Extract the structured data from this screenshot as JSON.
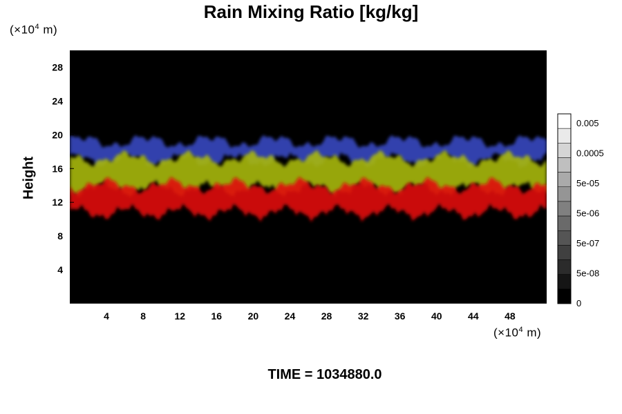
{
  "chart_data": {
    "type": "heatmap",
    "title": "Rain Mixing Ratio [kg/kg]",
    "ylabel": "Height",
    "xlabel": "",
    "y_unit_prefix": "(×10",
    "y_unit_exp": "4",
    "y_unit_suffix": " m)",
    "x_unit_prefix": "(×10",
    "x_unit_exp": "4",
    "x_unit_suffix": " m)",
    "xlim": [
      0,
      52
    ],
    "ylim": [
      0,
      30
    ],
    "x_ticks": [
      "4",
      "8",
      "12",
      "16",
      "20",
      "24",
      "28",
      "32",
      "36",
      "40",
      "44",
      "48"
    ],
    "y_ticks": [
      "4",
      "8",
      "12",
      "16",
      "20",
      "24",
      "28"
    ],
    "background_color": "#000000",
    "layers": [
      {
        "color": "#3848c0",
        "base": 17.0,
        "top": 19.2
      },
      {
        "color": "#a8b810",
        "base": 13.6,
        "top": 17.2
      },
      {
        "color": "#e01010",
        "base": 10.8,
        "top": 14.0
      }
    ],
    "colorbar": {
      "labels": [
        "0.005",
        "0.0005",
        "5e-05",
        "5e-06",
        "5e-07",
        "5e-08",
        "0"
      ],
      "levels": 13
    },
    "time_label": "TIME = 1034880.0"
  }
}
